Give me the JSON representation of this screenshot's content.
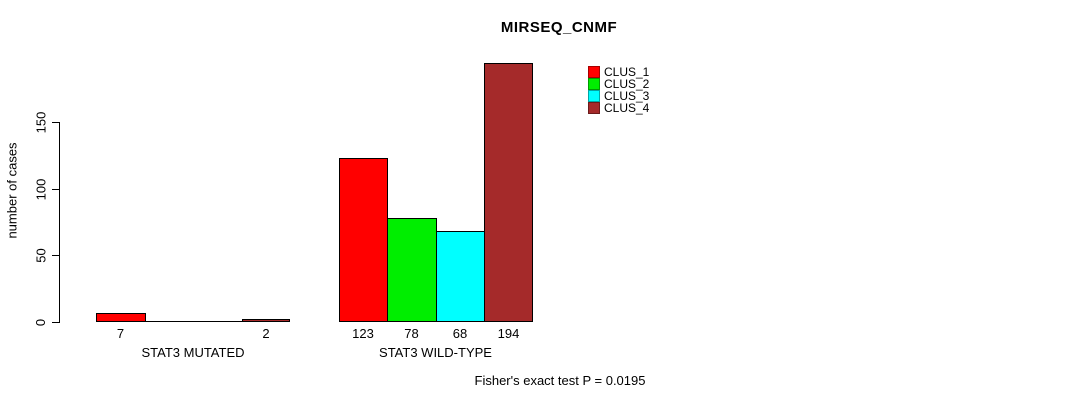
{
  "chart_data": {
    "type": "bar",
    "title": "MIRSEQ_CNMF",
    "ylabel": "number of cases",
    "xlabel": "",
    "ylim": [
      0,
      150
    ],
    "yticks": [
      0,
      50,
      100,
      150
    ],
    "grid": false,
    "legend_position": "top-right",
    "categories": [
      "STAT3 MUTATED",
      "STAT3 WILD-TYPE"
    ],
    "series": [
      {
        "name": "CLUS_1",
        "color": "#ff0000",
        "values": [
          7,
          123
        ]
      },
      {
        "name": "CLUS_2",
        "color": "#00ee00",
        "values": [
          0,
          78
        ]
      },
      {
        "name": "CLUS_3",
        "color": "#00ffff",
        "values": [
          0,
          68
        ]
      },
      {
        "name": "CLUS_4",
        "color": "#a52a2a",
        "values": [
          2,
          194
        ]
      }
    ],
    "bar_labels": [
      [
        "7",
        "",
        "",
        "2"
      ],
      [
        "123",
        "78",
        "68",
        "194"
      ]
    ],
    "annotation": "Fisher's exact test P = 0.0195"
  },
  "colors": {
    "background": "#ffffff",
    "axis": "#000000",
    "text": "#000000"
  }
}
